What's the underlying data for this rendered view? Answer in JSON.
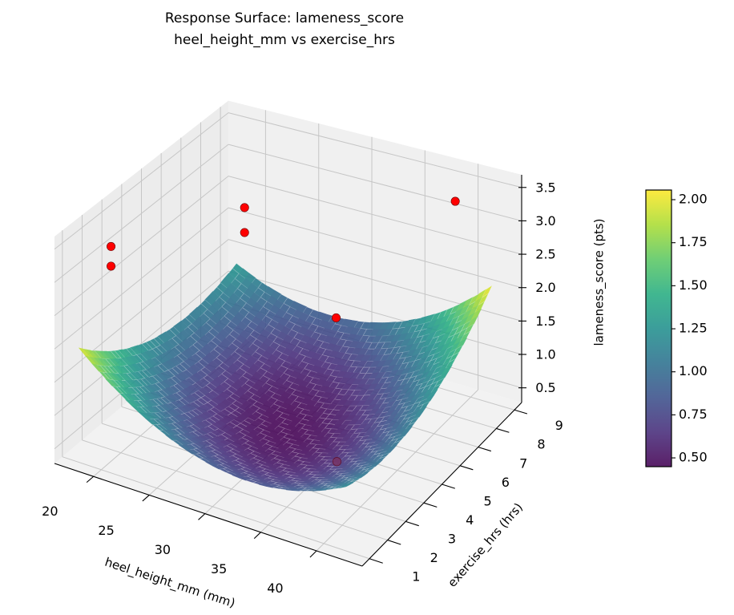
{
  "chart_data": {
    "type": "surface3d",
    "title": "Response Surface: lameness_score",
    "subtitle": "heel_height_mm vs exercise_hrs",
    "xlabel": "heel_height_mm (mm)",
    "ylabel": "exercise_hrs (hrs)",
    "zlabel": "lameness_score (pts)",
    "xlim": [
      16.5,
      44.1
    ],
    "ylim": [
      0.6,
      9.4
    ],
    "zlim": [
      0.28,
      3.69
    ],
    "xticks": [
      "20",
      "25",
      "30",
      "35",
      "40"
    ],
    "yticks": [
      "1",
      "2",
      "3",
      "4",
      "5",
      "6",
      "7",
      "8",
      "9"
    ],
    "zticks": [
      "0.5",
      "1.0",
      "1.5",
      "2.0",
      "2.5",
      "3.0",
      "3.5"
    ],
    "grid": true,
    "colormap": "viridis",
    "surface": {
      "x_range": [
        18,
        42
      ],
      "y_range": [
        1,
        9
      ],
      "model": "z = 0.45 + 0.005*(x-30)^2 + 0.029*(y-5)^2 + 0.00807*(x-30)*(y-5) - 0.001*(x-30) + 0.0094*(y-5)"
    },
    "points": [
      {
        "x": 16.7,
        "y": 3.35,
        "z": 2.9
      },
      {
        "x": 16.7,
        "y": 3.35,
        "z": 2.6
      },
      {
        "x": 24.2,
        "y": 6.0,
        "z": 3.2
      },
      {
        "x": 24.2,
        "y": 6.0,
        "z": 2.82
      },
      {
        "x": 38.2,
        "y": 9.2,
        "z": 3.1
      },
      {
        "x": 31.0,
        "y": 6.95,
        "z": 1.6
      },
      {
        "x": 36.5,
        "y": 3.8,
        "z": 0.55
      }
    ],
    "point_color": "#ff0000",
    "colorbar": {
      "range": [
        0.449,
        2.056
      ],
      "ticks": [
        "0.50",
        "0.75",
        "1.00",
        "1.25",
        "1.50",
        "1.75",
        "2.00"
      ]
    }
  }
}
